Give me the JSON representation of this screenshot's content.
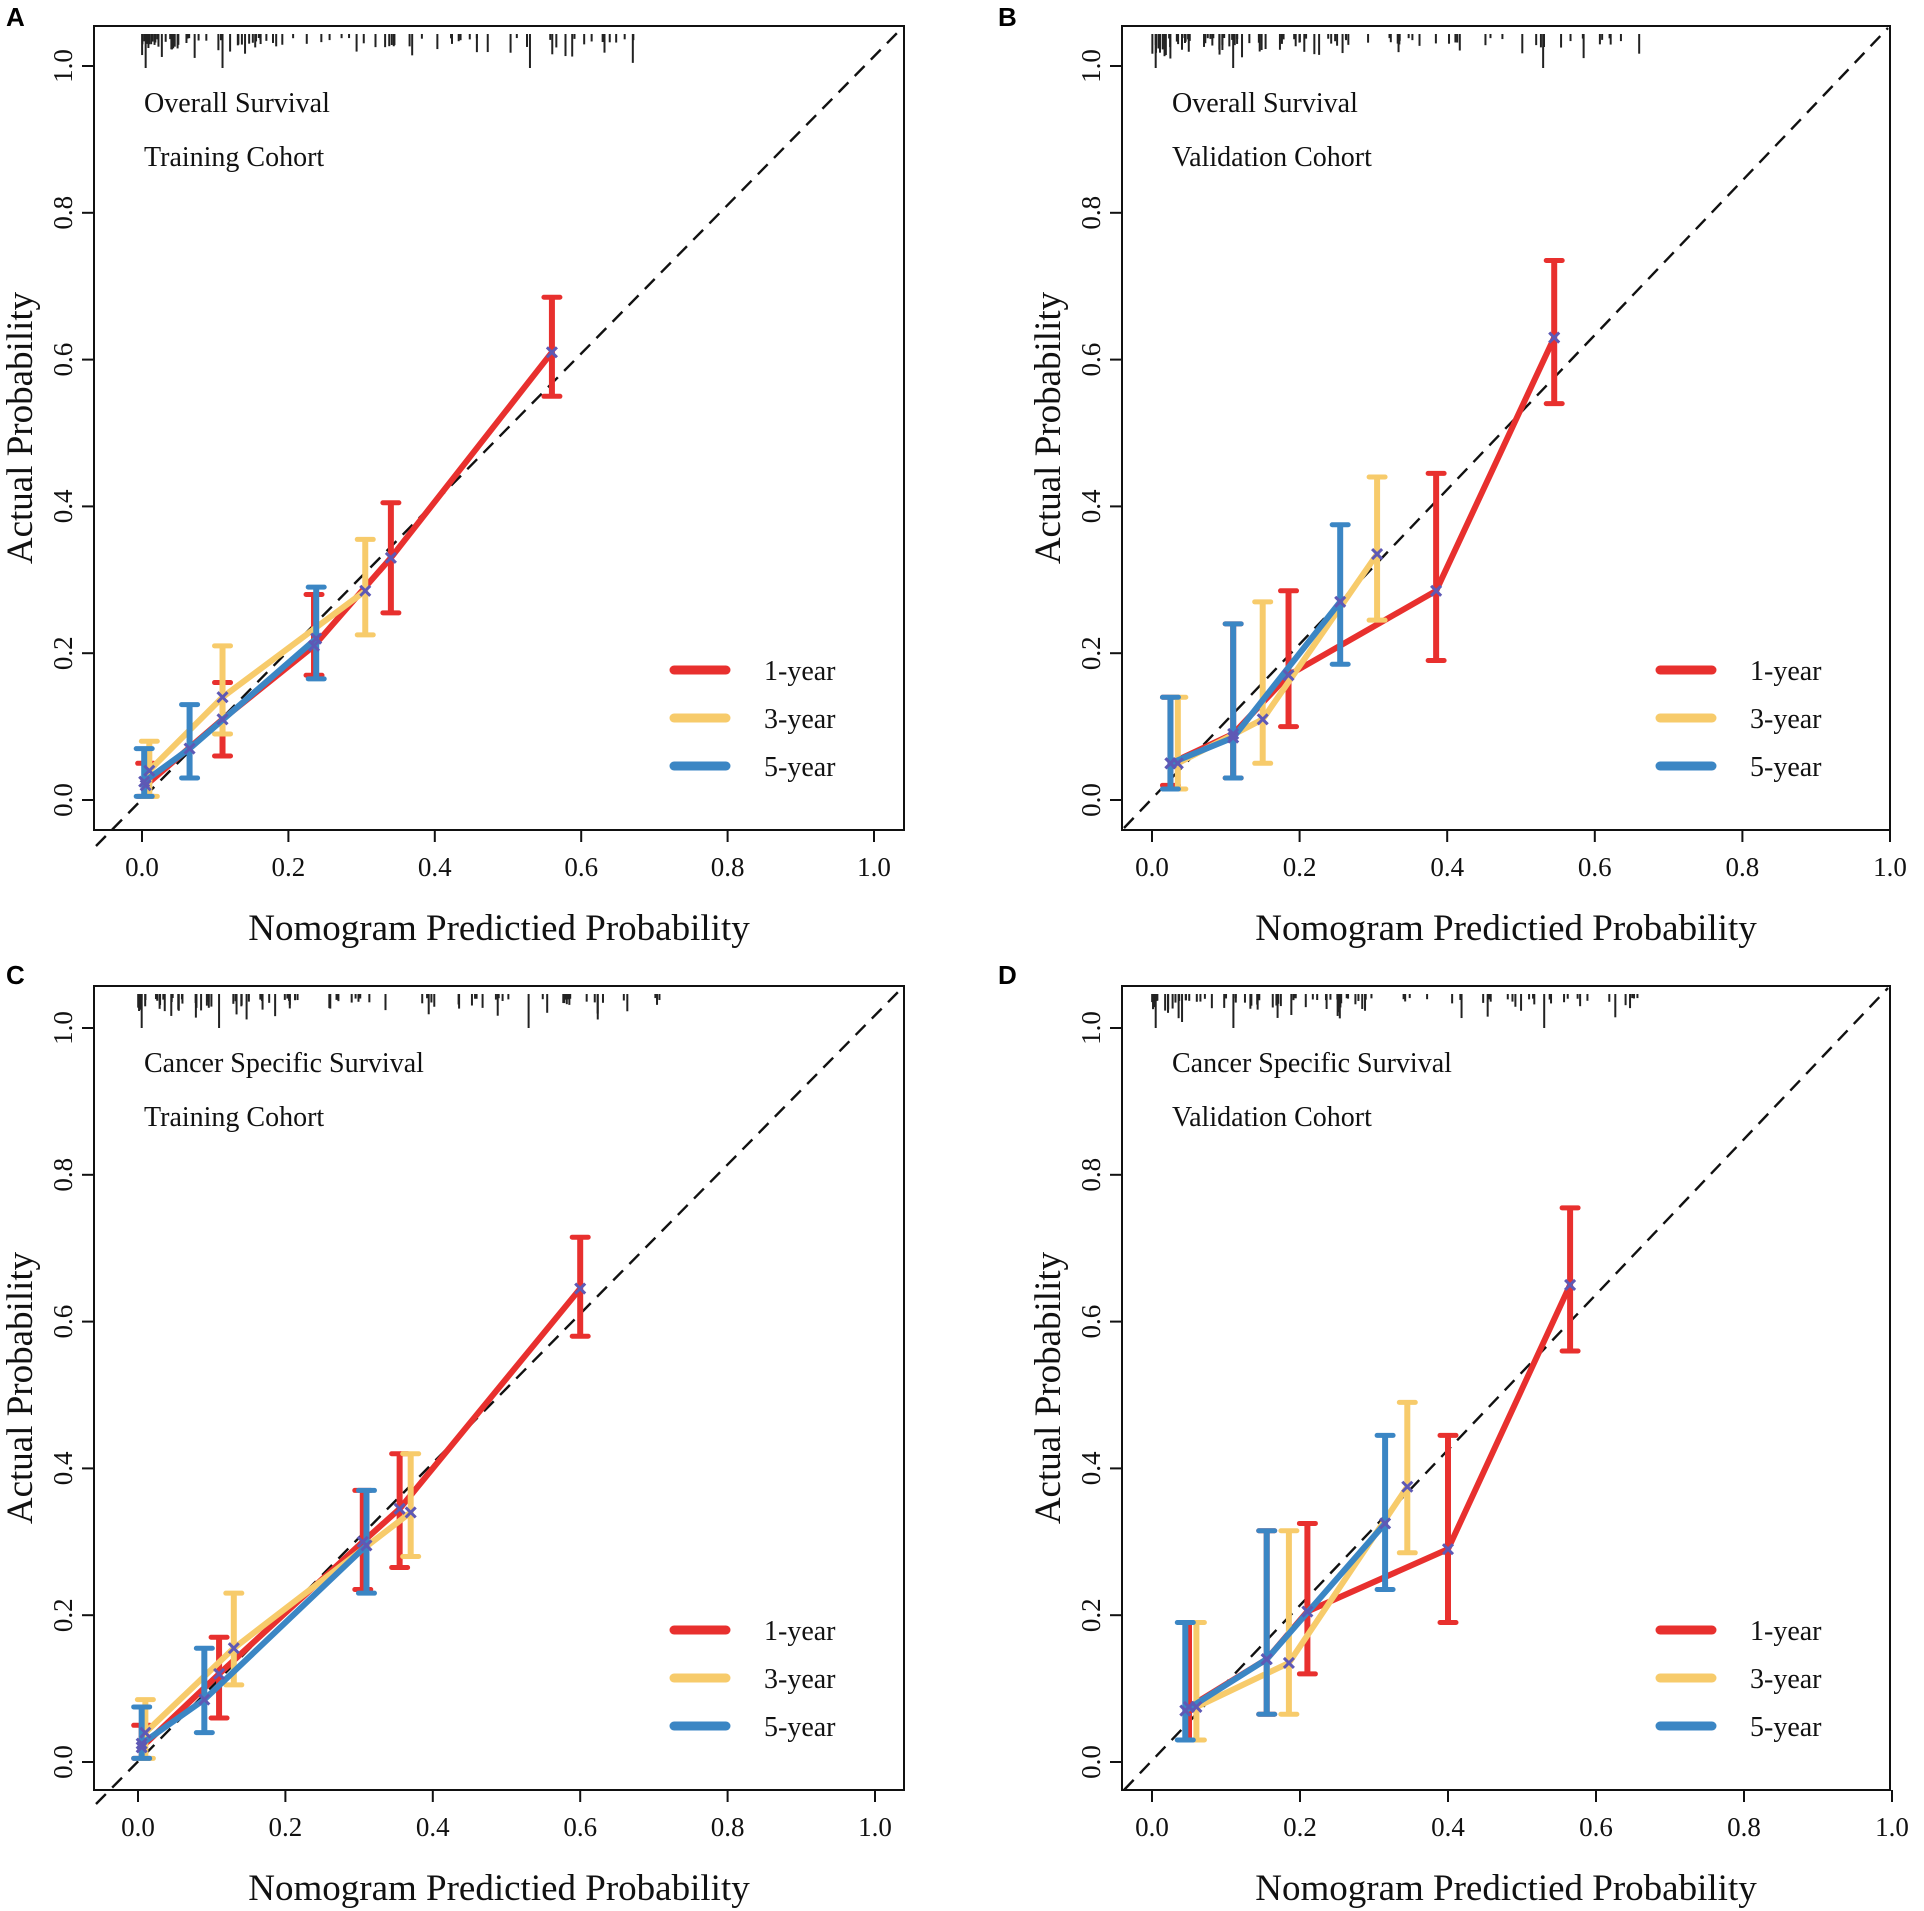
{
  "colors": {
    "1-year": "#e8302e",
    "3-year": "#f7cb6b",
    "5-year": "#3b86c4",
    "point": "#5e59b5",
    "diagonal": "#111111"
  },
  "chart_data": [
    {
      "panel": "A",
      "type": "line",
      "title_lines": [
        "Overall Survival",
        "Training Cohort"
      ],
      "xlabel": "Nomogram Predictied Probability",
      "ylabel": "Actual Probability",
      "xlim": [
        0,
        1
      ],
      "ylim": [
        0,
        1
      ],
      "xticks": [
        "0.0",
        "0.2",
        "0.4",
        "0.6",
        "0.8",
        "1.0"
      ],
      "yticks": [
        "0.0",
        "0.2",
        "0.4",
        "0.6",
        "0.8",
        "1.0"
      ],
      "legend": [
        "1-year",
        "3-year",
        "5-year"
      ],
      "series": [
        {
          "name": "1-year",
          "x": [
            0.005,
            0.11,
            0.235,
            0.34,
            0.56
          ],
          "y": [
            0.02,
            0.11,
            0.21,
            0.33,
            0.61
          ],
          "lower": [
            0.005,
            0.06,
            0.17,
            0.255,
            0.55
          ],
          "upper": [
            0.05,
            0.16,
            0.28,
            0.405,
            0.685
          ]
        },
        {
          "name": "3-year",
          "x": [
            0.01,
            0.11,
            0.305
          ],
          "y": [
            0.04,
            0.14,
            0.285
          ],
          "lower": [
            0.005,
            0.09,
            0.225
          ],
          "upper": [
            0.08,
            0.21,
            0.355
          ]
        },
        {
          "name": "5-year",
          "x": [
            0.003,
            0.065,
            0.238
          ],
          "y": [
            0.025,
            0.07,
            0.22
          ],
          "lower": [
            0.005,
            0.03,
            0.165
          ],
          "upper": [
            0.07,
            0.13,
            0.29
          ]
        }
      ]
    },
    {
      "panel": "B",
      "type": "line",
      "title_lines": [
        "Overall Survival",
        "Validation Cohort"
      ],
      "xlabel": "Nomogram Predictied Probability",
      "ylabel": "Actual Probability",
      "xlim": [
        0,
        1
      ],
      "ylim": [
        0,
        1
      ],
      "xticks": [
        "0.0",
        "0.2",
        "0.4",
        "0.6",
        "0.8",
        "1.0"
      ],
      "yticks": [
        "0.0",
        "0.2",
        "0.4",
        "0.6",
        "0.8",
        "1.0"
      ],
      "legend": [
        "1-year",
        "3-year",
        "5-year"
      ],
      "series": [
        {
          "name": "1-year",
          "x": [
            0.025,
            0.11,
            0.185,
            0.385,
            0.545
          ],
          "y": [
            0.05,
            0.09,
            0.17,
            0.285,
            0.63
          ],
          "lower": [
            0.02,
            0.03,
            0.1,
            0.19,
            0.54
          ],
          "upper": [
            0.14,
            0.24,
            0.285,
            0.445,
            0.735
          ]
        },
        {
          "name": "3-year",
          "x": [
            0.035,
            0.15,
            0.305
          ],
          "y": [
            0.05,
            0.11,
            0.335
          ],
          "lower": [
            0.015,
            0.05,
            0.245
          ],
          "upper": [
            0.14,
            0.27,
            0.44
          ]
        },
        {
          "name": "5-year",
          "x": [
            0.025,
            0.11,
            0.255
          ],
          "y": [
            0.05,
            0.085,
            0.27
          ],
          "lower": [
            0.015,
            0.03,
            0.185
          ],
          "upper": [
            0.14,
            0.24,
            0.375
          ]
        }
      ]
    },
    {
      "panel": "C",
      "type": "line",
      "title_lines": [
        "Cancer Specific Survival",
        "Training Cohort"
      ],
      "xlabel": "Nomogram Predictied Probability",
      "ylabel": "Actual Probability",
      "xlim": [
        0,
        1
      ],
      "ylim": [
        0,
        1
      ],
      "xticks": [
        "0.0",
        "0.2",
        "0.4",
        "0.6",
        "0.8",
        "1.0"
      ],
      "yticks": [
        "0.0",
        "0.2",
        "0.4",
        "0.6",
        "0.8",
        "1.0"
      ],
      "legend": [
        "1-year",
        "3-year",
        "5-year"
      ],
      "series": [
        {
          "name": "1-year",
          "x": [
            0.005,
            0.11,
            0.305,
            0.355,
            0.6
          ],
          "y": [
            0.02,
            0.12,
            0.3,
            0.345,
            0.645
          ],
          "lower": [
            0.005,
            0.06,
            0.235,
            0.265,
            0.58
          ],
          "upper": [
            0.05,
            0.17,
            0.37,
            0.42,
            0.715
          ]
        },
        {
          "name": "3-year",
          "x": [
            0.01,
            0.13,
            0.37
          ],
          "y": [
            0.04,
            0.155,
            0.34
          ],
          "lower": [
            0.005,
            0.105,
            0.28
          ],
          "upper": [
            0.085,
            0.23,
            0.42
          ]
        },
        {
          "name": "5-year",
          "x": [
            0.005,
            0.09,
            0.31
          ],
          "y": [
            0.025,
            0.085,
            0.295
          ],
          "lower": [
            0.005,
            0.04,
            0.23
          ],
          "upper": [
            0.075,
            0.155,
            0.37
          ]
        }
      ]
    },
    {
      "panel": "D",
      "type": "line",
      "title_lines": [
        "Cancer Specific Survival",
        "Validation Cohort"
      ],
      "xlabel": "Nomogram Predictied Probability",
      "ylabel": "Actual Probability",
      "xlim": [
        0,
        1
      ],
      "ylim": [
        0,
        1
      ],
      "xticks": [
        "0.0",
        "0.2",
        "0.4",
        "0.6",
        "0.8",
        "1.0"
      ],
      "yticks": [
        "0.0",
        "0.2",
        "0.4",
        "0.6",
        "0.8",
        "1.0"
      ],
      "legend": [
        "1-year",
        "3-year",
        "5-year"
      ],
      "series": [
        {
          "name": "1-year",
          "x": [
            0.05,
            0.155,
            0.21,
            0.4,
            0.565
          ],
          "y": [
            0.075,
            0.14,
            0.205,
            0.29,
            0.65
          ],
          "lower": [
            0.03,
            0.065,
            0.12,
            0.19,
            0.56
          ],
          "upper": [
            0.19,
            0.315,
            0.325,
            0.445,
            0.755
          ]
        },
        {
          "name": "3-year",
          "x": [
            0.06,
            0.185,
            0.345
          ],
          "y": [
            0.075,
            0.135,
            0.375
          ],
          "lower": [
            0.03,
            0.065,
            0.285
          ],
          "upper": [
            0.19,
            0.315,
            0.49
          ]
        },
        {
          "name": "5-year",
          "x": [
            0.045,
            0.155,
            0.315
          ],
          "y": [
            0.07,
            0.14,
            0.325
          ],
          "lower": [
            0.03,
            0.065,
            0.235
          ],
          "upper": [
            0.19,
            0.315,
            0.445
          ]
        }
      ]
    }
  ]
}
